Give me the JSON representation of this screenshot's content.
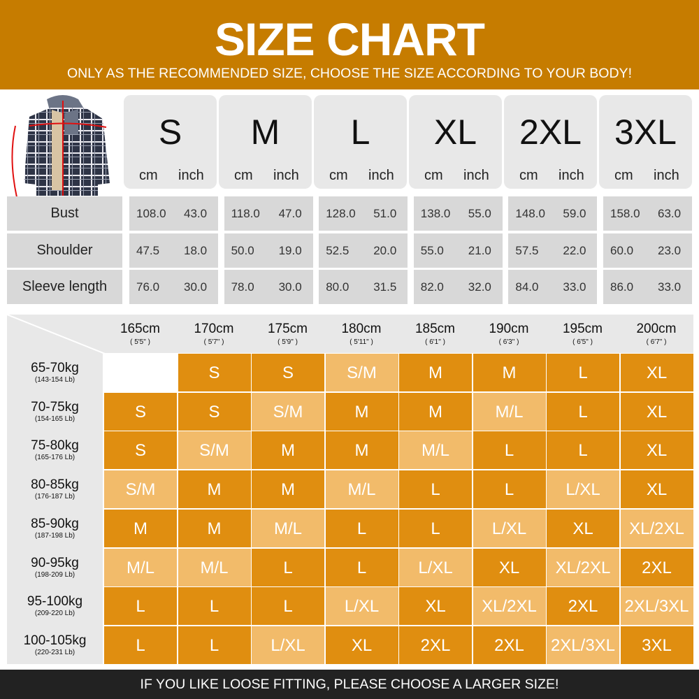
{
  "header": {
    "title": "SIZE CHART",
    "subtitle": "ONLY AS THE RECOMMENDED SIZE, CHOOSE THE SIZE ACCORDING TO YOUR BODY!"
  },
  "colors": {
    "header_band": "#c67c00",
    "cell_dark": "#e08e10",
    "cell_light": "#f2bb6a",
    "footer_band": "#222222"
  },
  "product_image": "plaid-hooded-jacket",
  "measurements": {
    "unit_cm": "cm",
    "unit_inch": "inch",
    "sizes": [
      "S",
      "M",
      "L",
      "XL",
      "2XL",
      "3XL"
    ],
    "rows": [
      {
        "label": "Bust",
        "values": [
          [
            "108.0",
            "43.0"
          ],
          [
            "118.0",
            "47.0"
          ],
          [
            "128.0",
            "51.0"
          ],
          [
            "138.0",
            "55.0"
          ],
          [
            "148.0",
            "59.0"
          ],
          [
            "158.0",
            "63.0"
          ]
        ]
      },
      {
        "label": "Shoulder",
        "values": [
          [
            "47.5",
            "18.0"
          ],
          [
            "50.0",
            "19.0"
          ],
          [
            "52.5",
            "20.0"
          ],
          [
            "55.0",
            "21.0"
          ],
          [
            "57.5",
            "22.0"
          ],
          [
            "60.0",
            "23.0"
          ]
        ]
      },
      {
        "label": "Sleeve length",
        "values": [
          [
            "76.0",
            "30.0"
          ],
          [
            "78.0",
            "30.0"
          ],
          [
            "80.0",
            "31.5"
          ],
          [
            "82.0",
            "32.0"
          ],
          [
            "84.0",
            "33.0"
          ],
          [
            "86.0",
            "33.0"
          ]
        ]
      }
    ]
  },
  "recommendation": {
    "heights": [
      {
        "cm": "165cm",
        "ft": "( 5'5\" )"
      },
      {
        "cm": "170cm",
        "ft": "( 5'7\" )"
      },
      {
        "cm": "175cm",
        "ft": "( 5'9\" )"
      },
      {
        "cm": "180cm",
        "ft": "( 5'11\" )"
      },
      {
        "cm": "185cm",
        "ft": "( 6'1\" )"
      },
      {
        "cm": "190cm",
        "ft": "( 6'3\" )"
      },
      {
        "cm": "195cm",
        "ft": "( 6'5\" )"
      },
      {
        "cm": "200cm",
        "ft": "( 6'7\" )"
      }
    ],
    "weights": [
      {
        "kg": "65-70kg",
        "lb": "(143-154 Lb)",
        "sizes": [
          "",
          "S",
          "S",
          "S/M",
          "M",
          "M",
          "L",
          "XL"
        ]
      },
      {
        "kg": "70-75kg",
        "lb": "(154-165 Lb)",
        "sizes": [
          "S",
          "S",
          "S/M",
          "M",
          "M",
          "M/L",
          "L",
          "XL"
        ]
      },
      {
        "kg": "75-80kg",
        "lb": "(165-176 Lb)",
        "sizes": [
          "S",
          "S/M",
          "M",
          "M",
          "M/L",
          "L",
          "L",
          "XL"
        ]
      },
      {
        "kg": "80-85kg",
        "lb": "(176-187 Lb)",
        "sizes": [
          "S/M",
          "M",
          "M",
          "M/L",
          "L",
          "L",
          "L/XL",
          "XL"
        ]
      },
      {
        "kg": "85-90kg",
        "lb": "(187-198 Lb)",
        "sizes": [
          "M",
          "M",
          "M/L",
          "L",
          "L",
          "L/XL",
          "XL",
          "XL/2XL"
        ]
      },
      {
        "kg": "90-95kg",
        "lb": "(198-209 Lb)",
        "sizes": [
          "M/L",
          "M/L",
          "L",
          "L",
          "L/XL",
          "XL",
          "XL/2XL",
          "2XL"
        ]
      },
      {
        "kg": "95-100kg",
        "lb": "(209-220 Lb)",
        "sizes": [
          "L",
          "L",
          "L",
          "L/XL",
          "XL",
          "XL/2XL",
          "2XL",
          "2XL/3XL"
        ]
      },
      {
        "kg": "100-105kg",
        "lb": "(220-231 Lb)",
        "sizes": [
          "L",
          "L",
          "L/XL",
          "XL",
          "2XL",
          "2XL",
          "2XL/3XL",
          "3XL"
        ]
      }
    ]
  },
  "footer": {
    "text": "IF YOU LIKE LOOSE FITTING, PLEASE CHOOSE A LARGER SIZE!"
  }
}
